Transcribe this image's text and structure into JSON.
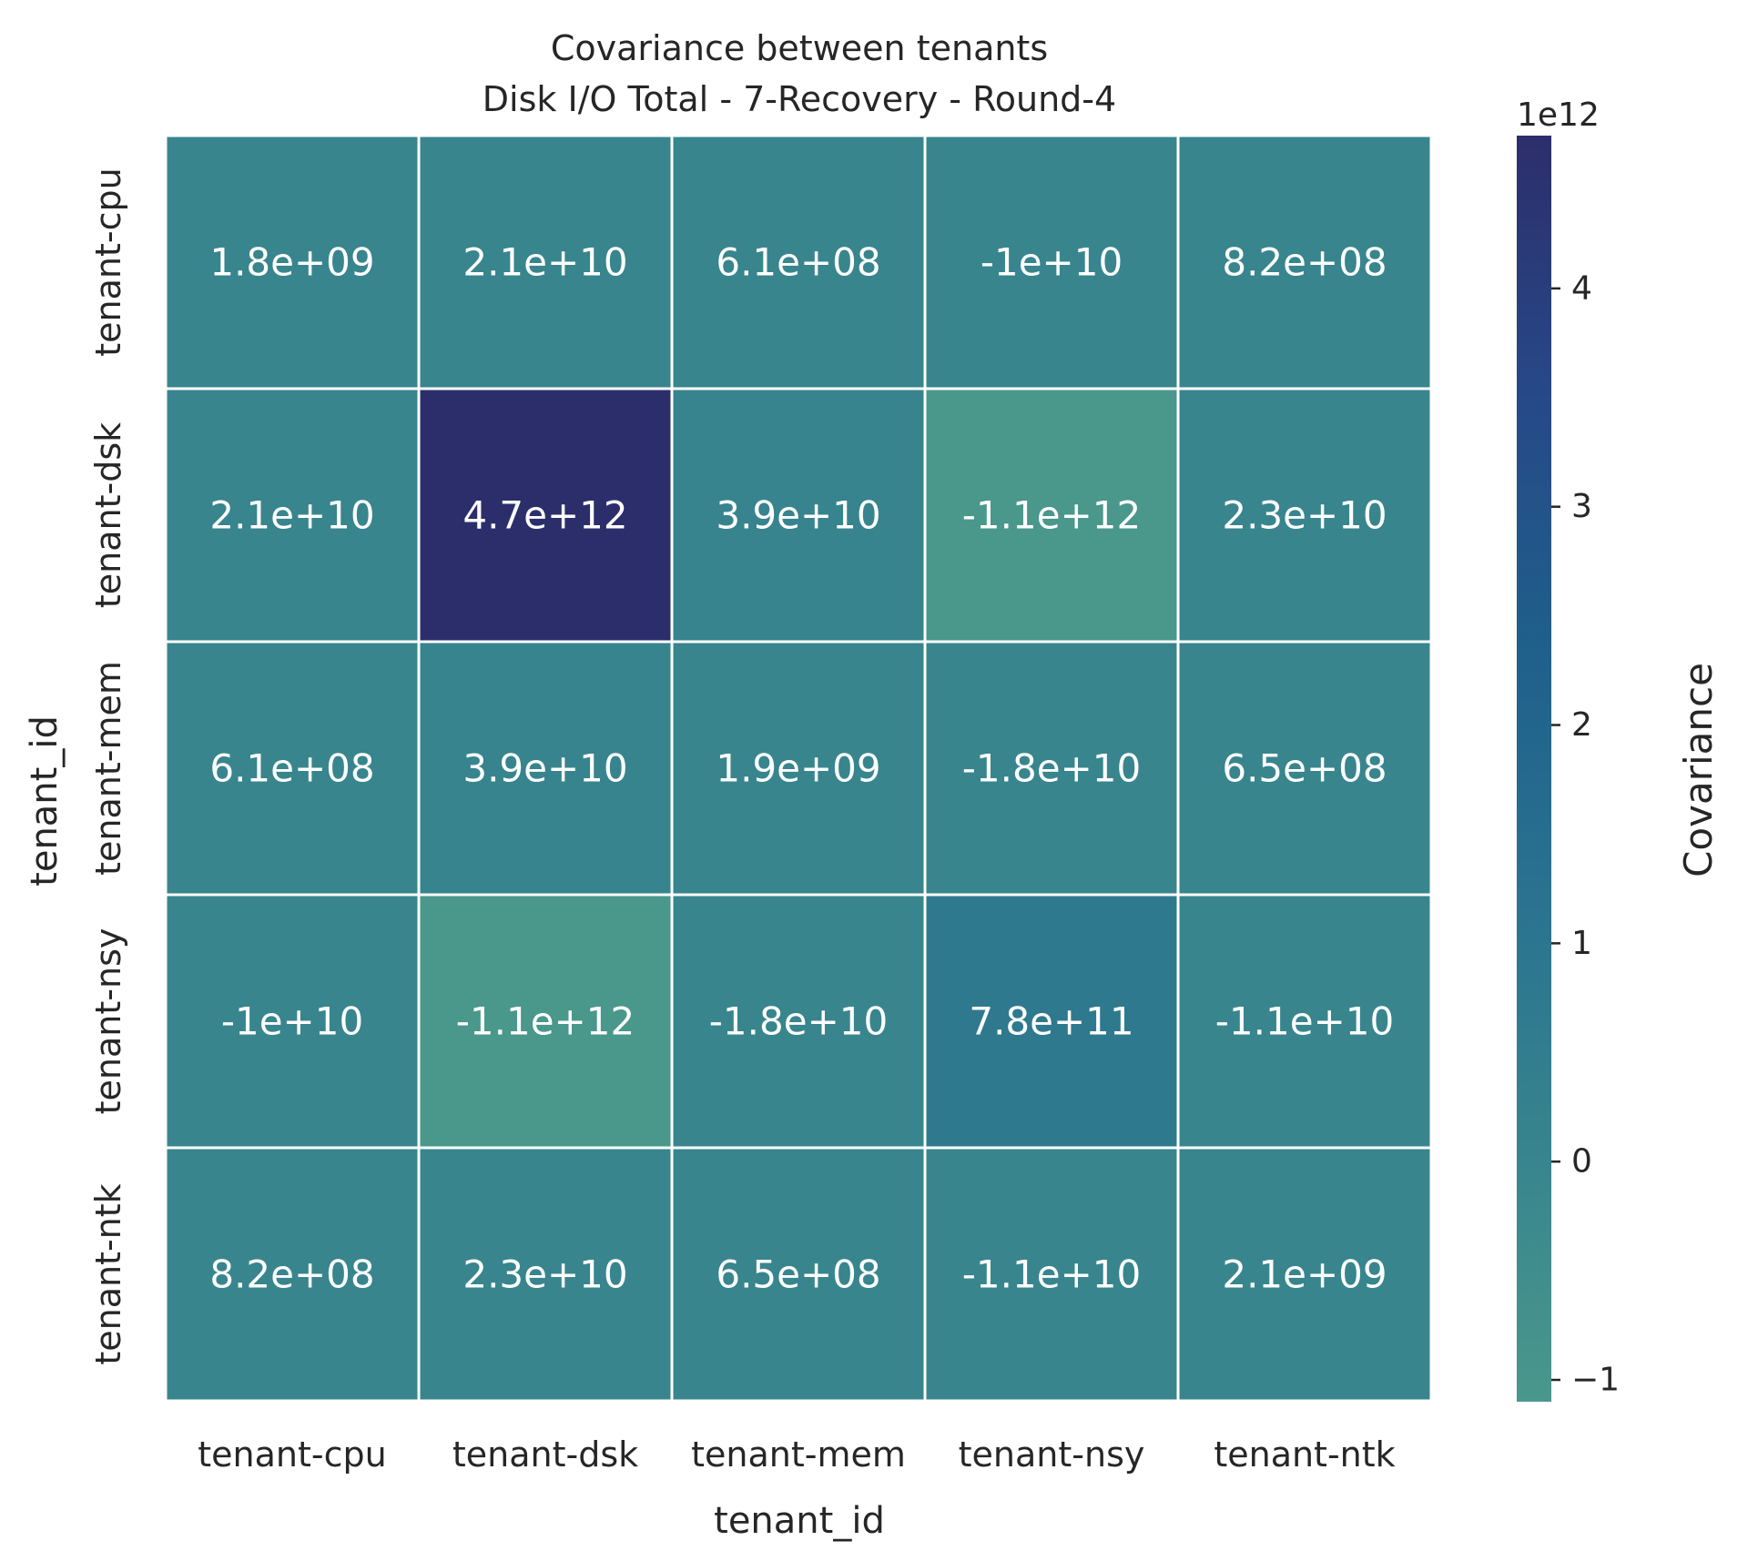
{
  "chart_data": {
    "type": "heatmap",
    "title": [
      "Covariance between tenants",
      "Disk I/O Total - 7-Recovery - Round-4"
    ],
    "xlabel": "tenant_id",
    "ylabel": "tenant_id",
    "x_categories": [
      "tenant-cpu",
      "tenant-dsk",
      "tenant-mem",
      "tenant-nsy",
      "tenant-ntk"
    ],
    "y_categories": [
      "tenant-cpu",
      "tenant-dsk",
      "tenant-mem",
      "tenant-nsy",
      "tenant-ntk"
    ],
    "values": [
      [
        1800000000.0,
        21000000000.0,
        610000000.0,
        -10000000000.0,
        820000000.0
      ],
      [
        21000000000.0,
        4700000000000.0,
        39000000000.0,
        -1100000000000.0,
        23000000000.0
      ],
      [
        610000000.0,
        39000000000.0,
        1900000000.0,
        -18000000000.0,
        650000000.0
      ],
      [
        -10000000000.0,
        -1100000000000.0,
        -18000000000.0,
        780000000000.0,
        -11000000000.0
      ],
      [
        820000000.0,
        23000000000.0,
        650000000.0,
        -11000000000.0,
        2100000000.0
      ]
    ],
    "annotations": [
      [
        "1.8e+09",
        "2.1e+10",
        "6.1e+08",
        "-1e+10",
        "8.2e+08"
      ],
      [
        "2.1e+10",
        "4.7e+12",
        "3.9e+10",
        "-1.1e+12",
        "2.3e+10"
      ],
      [
        "6.1e+08",
        "3.9e+10",
        "1.9e+09",
        "-1.8e+10",
        "6.5e+08"
      ],
      [
        "-1e+10",
        "-1.1e+12",
        "-1.8e+10",
        "7.8e+11",
        "-1.1e+10"
      ],
      [
        "8.2e+08",
        "2.3e+10",
        "6.5e+08",
        "-1.1e+10",
        "2.1e+09"
      ]
    ],
    "colorbar": {
      "label": "Covariance",
      "offset_text": "1e12",
      "vmin": -1100000000000.0,
      "vmax": 4700000000000.0,
      "ticks": [
        -1,
        0,
        1,
        2,
        3,
        4
      ],
      "tick_labels": [
        "−1",
        "0",
        "1",
        "2",
        "3",
        "4"
      ],
      "tick_scale": 1000000000000.0,
      "colormap": "crest",
      "color_stops": [
        "#4a978c",
        "#37848e",
        "#2a7290",
        "#1f5f8b",
        "#274887",
        "#2c2e6b"
      ]
    },
    "annotation_color": "#ffffff",
    "cell_border_color": "#ffffff"
  }
}
